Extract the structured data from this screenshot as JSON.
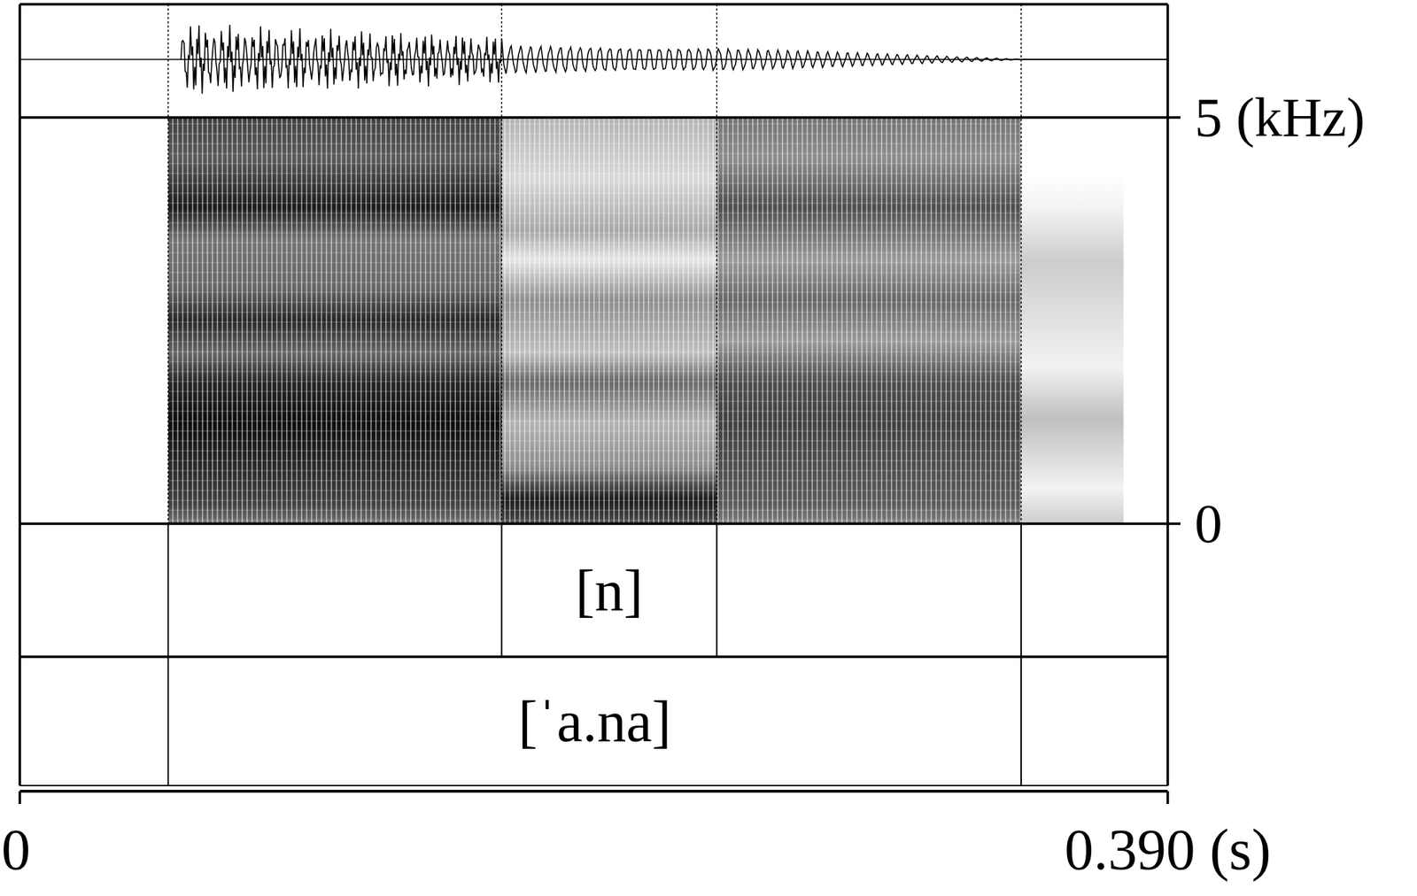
{
  "chart_data": {
    "type": "spectrogram",
    "xlim": [
      0,
      0.39
    ],
    "xticks": [
      0,
      {
        "value": 0.39,
        "label": "0.390 (s)"
      }
    ],
    "ylim": [
      0,
      5
    ],
    "yticks": [
      0,
      {
        "value": 5,
        "label": "5 (kHz)"
      }
    ],
    "tiers": [
      {
        "boundaries": [
          0.0504,
          0.1637,
          0.2368,
          0.3402
        ],
        "intervals": [
          {
            "start": 0.1637,
            "end": 0.2368,
            "label": "[n]"
          }
        ]
      },
      {
        "boundaries": [
          0.0504,
          0.3402
        ],
        "intervals": [
          {
            "start": 0.0504,
            "end": 0.3402,
            "label": "[ˈa.na]"
          }
        ]
      }
    ]
  }
}
